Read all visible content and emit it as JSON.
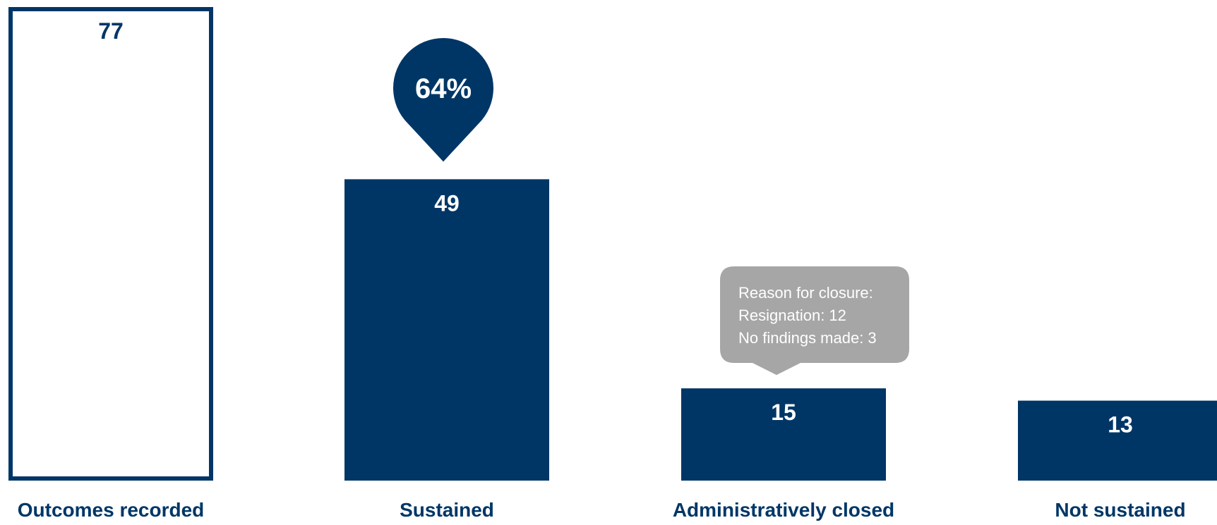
{
  "chart_data": {
    "type": "bar",
    "categories": [
      "Outcomes recorded",
      "Sustained",
      "Administratively closed",
      "Not sustained"
    ],
    "values": [
      77,
      49,
      15,
      13
    ],
    "bar_styles": [
      "outline",
      "filled",
      "filled",
      "filled"
    ],
    "ylim": [
      0,
      77
    ],
    "grid": false,
    "legend": "none",
    "annotations": {
      "percent_badge": {
        "category": "Sustained",
        "text": "64%"
      },
      "closure_callout": {
        "category": "Administratively closed",
        "lines": [
          "Reason for closure:",
          "Resignation: 12",
          "No findings made: 3"
        ]
      }
    }
  },
  "colors": {
    "bar": "#003666",
    "outline_bar_fill": "#ffffff",
    "value_on_fill": "#ffffff",
    "callout_bg": "#a6a6a6",
    "callout_text": "#ffffff",
    "category_label": "#003666"
  }
}
